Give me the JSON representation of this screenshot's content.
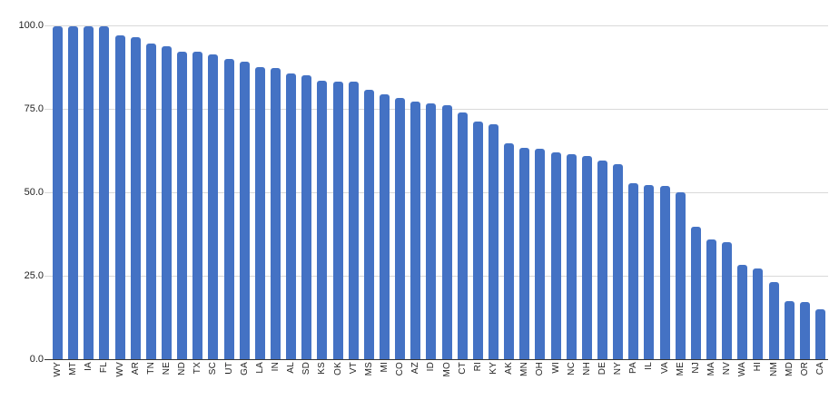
{
  "chart_data": {
    "type": "bar",
    "title": "",
    "xlabel": "",
    "ylabel": "",
    "categories": [
      "WY",
      "MT",
      "IA",
      "FL",
      "WV",
      "AR",
      "TN",
      "NE",
      "ND",
      "TX",
      "SC",
      "UT",
      "GA",
      "LA",
      "IN",
      "AL",
      "SD",
      "KS",
      "OK",
      "VT",
      "MS",
      "MI",
      "CO",
      "AZ",
      "ID",
      "MO",
      "CT",
      "RI",
      "KY",
      "AK",
      "MN",
      "OH",
      "WI",
      "NC",
      "NH",
      "DE",
      "NY",
      "PA",
      "IL",
      "VA",
      "ME",
      "NJ",
      "MA",
      "NV",
      "WA",
      "HI",
      "NM",
      "MD",
      "OR",
      "CA"
    ],
    "values": [
      99.8,
      99.7,
      99.7,
      99.6,
      97.0,
      96.4,
      94.6,
      93.8,
      92.2,
      92.0,
      91.2,
      90.0,
      89.2,
      87.4,
      87.2,
      85.5,
      85.1,
      83.4,
      83.2,
      83.1,
      80.8,
      79.4,
      78.3,
      77.2,
      76.6,
      76.2,
      74.0,
      71.3,
      70.4,
      64.7,
      63.3,
      63.1,
      62.0,
      61.3,
      60.8,
      59.4,
      58.5,
      52.6,
      52.2,
      51.8,
      50.0,
      39.8,
      36.0,
      35.1,
      28.3,
      27.2,
      23.2,
      17.5,
      17.2,
      14.9
    ],
    "ylim": [
      0,
      100
    ],
    "yticks": [
      0,
      25,
      50,
      75,
      100
    ],
    "ytick_labels": [
      "0.0",
      "25.0",
      "50.0",
      "75.0",
      "100.0"
    ],
    "grid": true,
    "legend": false,
    "bar_color": "#4472c4",
    "gridline_color": "#d9d9d9",
    "axis_line_color": "#333333",
    "label_color": "#1f1f1f",
    "background": "#ffffff"
  }
}
